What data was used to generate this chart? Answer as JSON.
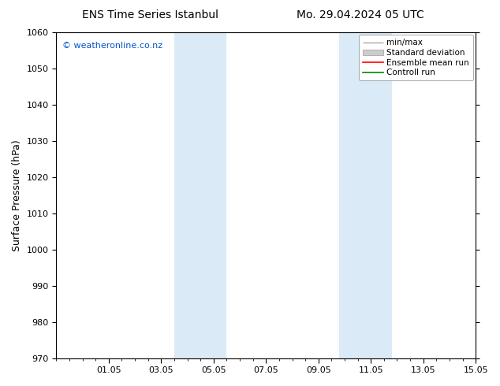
{
  "title_left": "ENS Time Series Istanbul",
  "title_right": "Mo. 29.04.2024 05 UTC",
  "ylabel": "Surface Pressure (hPa)",
  "ylim": [
    970,
    1060
  ],
  "yticks": [
    970,
    980,
    990,
    1000,
    1010,
    1020,
    1030,
    1040,
    1050,
    1060
  ],
  "xtick_labels": [
    "01.05",
    "03.05",
    "05.05",
    "07.05",
    "09.05",
    "11.05",
    "13.05",
    "15.05"
  ],
  "xtick_positions": [
    2,
    4,
    6,
    8,
    10,
    12,
    14,
    16
  ],
  "xlim": [
    0,
    16
  ],
  "shaded_bands": [
    {
      "x_start": 4.5,
      "x_end": 6.5
    },
    {
      "x_start": 10.8,
      "x_end": 12.8
    }
  ],
  "shade_color": "#daeaf7",
  "watermark": "© weatheronline.co.nz",
  "watermark_color": "#0055cc",
  "legend_entries": [
    {
      "label": "min/max"
    },
    {
      "label": "Standard deviation"
    },
    {
      "label": "Ensemble mean run"
    },
    {
      "label": "Controll run"
    }
  ],
  "legend_colors": [
    "#aaaaaa",
    "#cccccc",
    "#ff0000",
    "#008800"
  ],
  "background_color": "#ffffff",
  "tick_color": "#000000",
  "title_fontsize": 10,
  "ylabel_fontsize": 9,
  "tick_fontsize": 8,
  "legend_fontsize": 7.5,
  "watermark_fontsize": 8
}
